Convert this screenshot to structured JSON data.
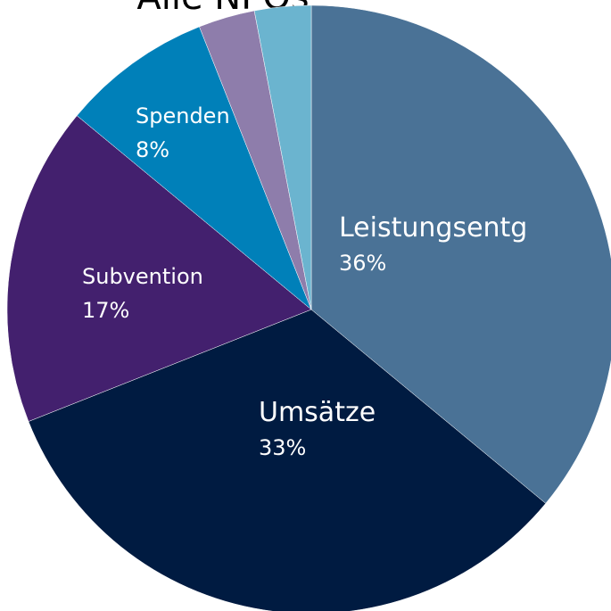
{
  "chart_data": {
    "type": "pie",
    "title": "Alle NPOs",
    "categories": [
      "Leistungsentg",
      "Umsätze",
      "Subvention",
      "Spenden",
      null,
      null
    ],
    "values": [
      36,
      33,
      17,
      8,
      3,
      3
    ],
    "value_labels": [
      "36%",
      "33%",
      "17%",
      "8%",
      null,
      null
    ],
    "colors": [
      "#4a7296",
      "#001b41",
      "#43206e",
      "#0080b9",
      "#8e7dab",
      "#6bb4cf"
    ]
  }
}
